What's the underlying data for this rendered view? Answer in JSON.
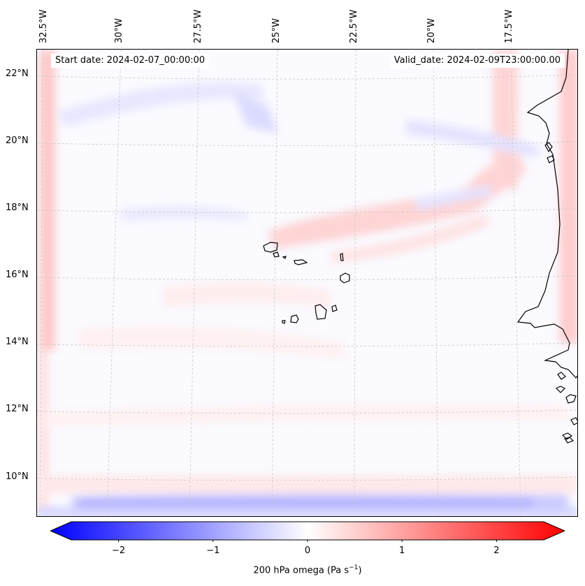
{
  "map": {
    "title": "200 hPa omega",
    "start_date": "Start date: 2024-02-07_00:00:00",
    "valid_date": "Valid_date: 2024-02-09T23:00:00.00",
    "longitude_labels": [
      "32.5°W",
      "30°W",
      "27.5°W",
      "25°W",
      "22.5°W",
      "20°W",
      "17.5°W"
    ],
    "latitude_labels": [
      "22°N",
      "20°N",
      "18°N",
      "16°N",
      "14°N",
      "12°N",
      "10°N"
    ],
    "features": [
      "Cape Verde islands",
      "West African coastline"
    ]
  },
  "colorbar": {
    "label_prefix": "200 hPa omega (Pa s",
    "label_exponent": "−1",
    "label_suffix": ")",
    "tick_labels": [
      "−2",
      "−1",
      "0",
      "1",
      "2"
    ],
    "tick_values": [
      -2,
      -1,
      0,
      1,
      2
    ],
    "range": [
      -2.5,
      2.5
    ],
    "colors": {
      "min": "#0000ff",
      "mid": "#ffffff",
      "max": "#ff0000"
    }
  }
}
